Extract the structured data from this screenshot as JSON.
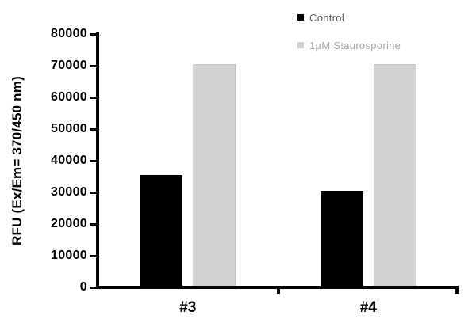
{
  "chart_data": {
    "type": "bar",
    "title": "",
    "xlabel": "",
    "ylabel": "RFU (Ex/Em= 370/450 nm)",
    "categories": [
      "#3",
      "#4"
    ],
    "series": [
      {
        "name": "Control",
        "values": [
          35000,
          30000
        ],
        "color": "#000000",
        "legend_text_color": "#595959"
      },
      {
        "name": "1µM Staurosporine",
        "values": [
          70000,
          70000
        ],
        "color": "#d2d2d2",
        "legend_text_color": "#a6a6a6"
      }
    ],
    "ylim": [
      0,
      80000
    ],
    "ytick_step": 10000,
    "ytick_labels": [
      "0",
      "10000",
      "20000",
      "30000",
      "40000",
      "50000",
      "60000",
      "70000",
      "80000"
    ],
    "grid": false,
    "legend_position": "top-right",
    "axis_color": "#000000",
    "background_color": "#ffffff"
  }
}
